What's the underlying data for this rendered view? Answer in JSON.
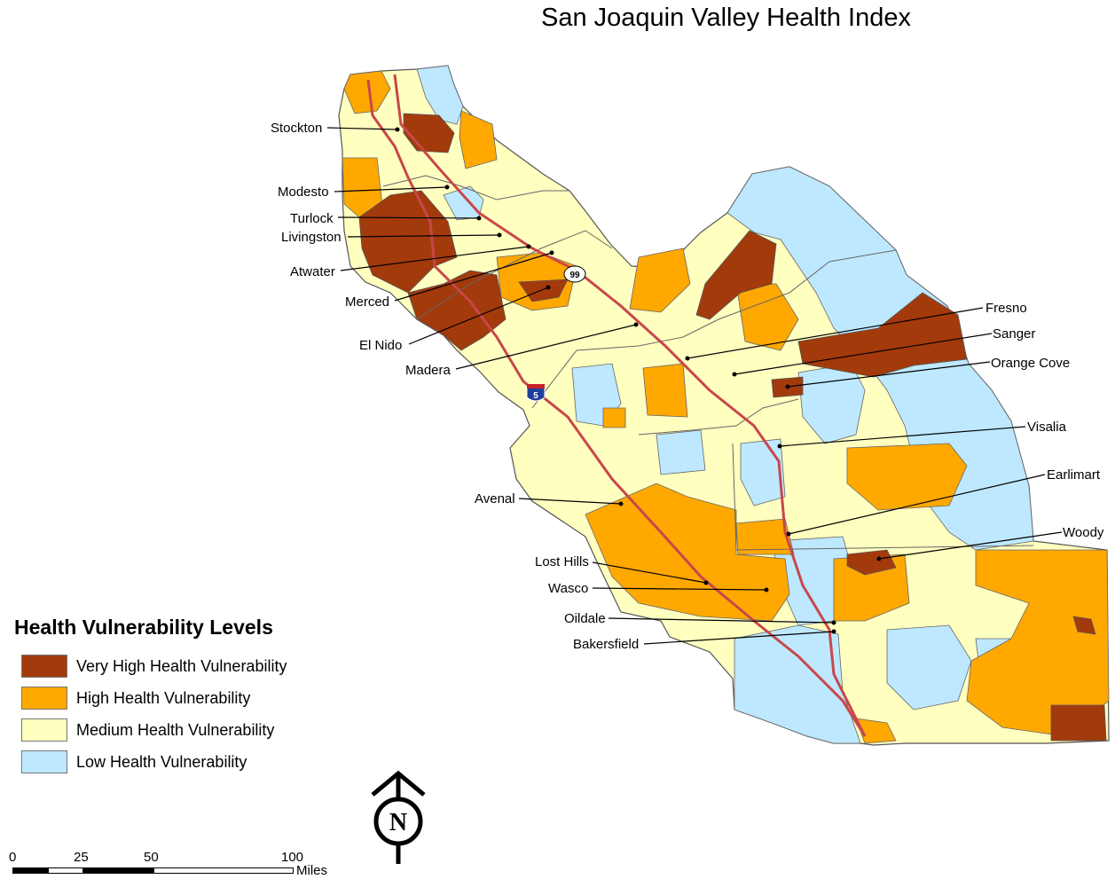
{
  "title": "San Joaquin Valley Health Index",
  "legend": {
    "title": "Health Vulnerability Levels",
    "items": [
      {
        "label": "Very High Health Vulnerability",
        "color": "#A33A0C"
      },
      {
        "label": "High Health Vulnerability",
        "color": "#FFA800"
      },
      {
        "label": "Medium Health Vulnerability",
        "color": "#FFFFC0"
      },
      {
        "label": "Low Health Vulnerability",
        "color": "#BEE8FF"
      }
    ]
  },
  "highways": [
    {
      "shield": "99",
      "color": "#FFFFFF"
    },
    {
      "shield": "5",
      "color": "#1F3E9C"
    }
  ],
  "cities": [
    {
      "name": "Stockton"
    },
    {
      "name": "Modesto"
    },
    {
      "name": "Turlock"
    },
    {
      "name": "Livingston"
    },
    {
      "name": "Atwater"
    },
    {
      "name": "Merced"
    },
    {
      "name": "El Nido"
    },
    {
      "name": "Madera"
    },
    {
      "name": "Fresno"
    },
    {
      "name": "Sanger"
    },
    {
      "name": "Orange Cove"
    },
    {
      "name": "Visalia"
    },
    {
      "name": "Earlimart"
    },
    {
      "name": "Woody"
    },
    {
      "name": "Avenal"
    },
    {
      "name": "Lost Hills"
    },
    {
      "name": "Wasco"
    },
    {
      "name": "Oildale"
    },
    {
      "name": "Bakersfield"
    }
  ],
  "scale": {
    "ticks": [
      "0",
      "25",
      "50",
      "100"
    ],
    "unit": "Miles"
  },
  "north_arrow": {
    "label": "N"
  }
}
